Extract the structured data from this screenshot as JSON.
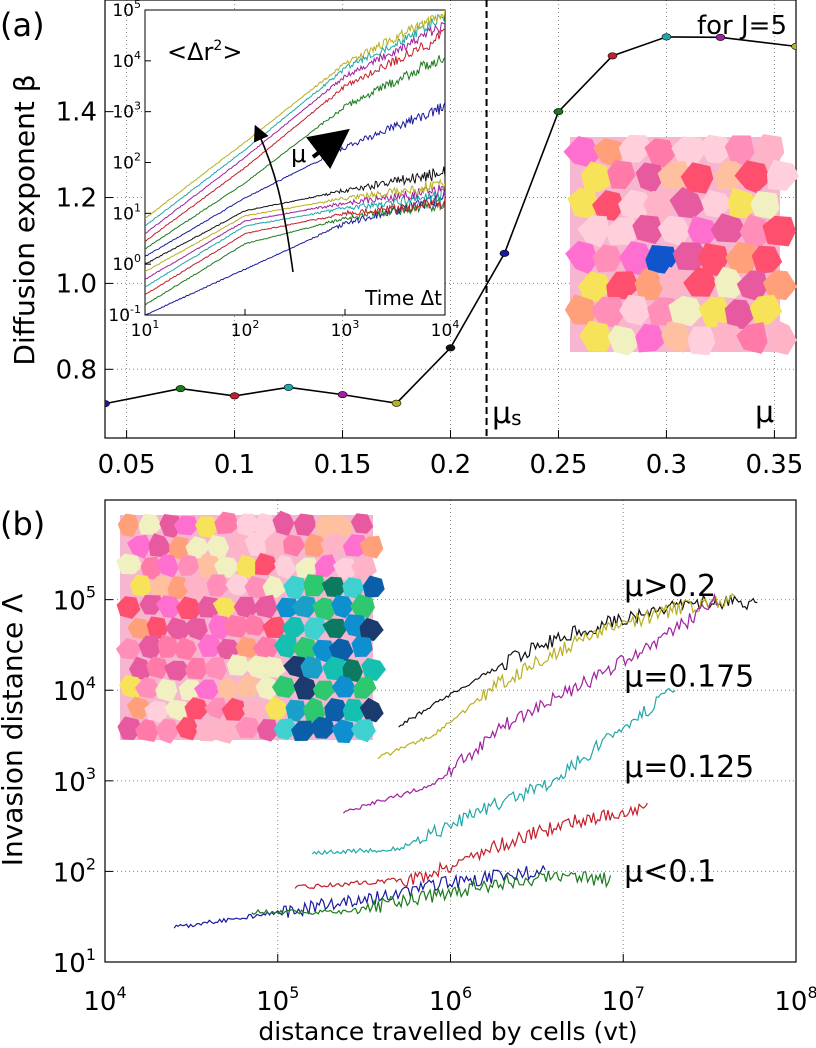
{
  "figure": {
    "panel_a_label": "(a)",
    "panel_b_label": "(b)"
  },
  "chart_data": [
    {
      "id": "a-main",
      "type": "line",
      "ylabel": "Diffusion exponent β",
      "xlabel": "",
      "annotation_j": "for J=5",
      "annotation_mu": "μ",
      "annotation_mus": "μ",
      "annotation_mus_sub": "s",
      "mu_s": 0.2167,
      "xlim": [
        0.04,
        0.36
      ],
      "ylim": [
        0.64,
        1.66
      ],
      "xticks": [
        0.05,
        0.1,
        0.15,
        0.2,
        0.25,
        0.3,
        0.35
      ],
      "xtick_labels": [
        "0.05",
        "0.1",
        "0.15",
        "0.2",
        "0.25",
        "0.3",
        "0.35"
      ],
      "yticks": [
        0.8,
        1.0,
        1.2,
        1.4
      ],
      "ytick_labels": [
        "0.8",
        "1.0",
        "1.2",
        "1.4"
      ],
      "grid": true,
      "points": [
        {
          "x": 0.04,
          "y": 0.72,
          "color": "#1a1aa0"
        },
        {
          "x": 0.075,
          "y": 0.755,
          "color": "#1c7a1c"
        },
        {
          "x": 0.1,
          "y": 0.738,
          "color": "#c41e2a"
        },
        {
          "x": 0.125,
          "y": 0.758,
          "color": "#20a8a8"
        },
        {
          "x": 0.15,
          "y": 0.741,
          "color": "#a020a0"
        },
        {
          "x": 0.175,
          "y": 0.721,
          "color": "#b8b020"
        },
        {
          "x": 0.2,
          "y": 0.85,
          "color": "#111111"
        },
        {
          "x": 0.225,
          "y": 1.07,
          "color": "#1a1aa0"
        },
        {
          "x": 0.25,
          "y": 1.4,
          "color": "#1c7a1c"
        },
        {
          "x": 0.275,
          "y": 1.53,
          "color": "#c41e2a"
        },
        {
          "x": 0.3,
          "y": 1.574,
          "color": "#20a8a8"
        },
        {
          "x": 0.325,
          "y": 1.573,
          "color": "#a020a0"
        },
        {
          "x": 0.36,
          "y": 1.552,
          "color": "#b8b020"
        }
      ]
    },
    {
      "id": "a-inset",
      "type": "line",
      "title": "<Δr",
      "title_sup": "2",
      "title_end": ">",
      "xlabel": "Time Δt",
      "arrow_label": "μ",
      "xscale": "log",
      "yscale": "log",
      "xlim": [
        1,
        4
      ],
      "ylim": [
        -1,
        5
      ],
      "xtick_labels": [
        {
          "b": "10",
          "e": "1"
        },
        {
          "b": "10",
          "e": "2"
        },
        {
          "b": "10",
          "e": "3"
        },
        {
          "b": "10",
          "e": "4"
        }
      ],
      "ytick_labels": [
        {
          "b": "10",
          "e": "-1"
        },
        {
          "b": "10",
          "e": "0"
        },
        {
          "b": "10",
          "e": "1"
        },
        {
          "b": "10",
          "e": "2"
        },
        {
          "b": "10",
          "e": "3"
        },
        {
          "b": "10",
          "e": "4"
        },
        {
          "b": "10",
          "e": "5"
        }
      ],
      "note": "axes in log10 units",
      "series": [
        {
          "color": "#1a1aa0",
          "curve": [
            [
              1,
              -1.0
            ],
            [
              2,
              -0.1
            ],
            [
              3,
              0.8
            ],
            [
              4,
              1.3
            ]
          ]
        },
        {
          "color": "#1c7a1c",
          "curve": [
            [
              1,
              -0.8
            ],
            [
              2,
              0.4
            ],
            [
              3,
              0.9
            ],
            [
              4,
              1.2
            ]
          ]
        },
        {
          "color": "#c41e2a",
          "curve": [
            [
              1,
              -0.6
            ],
            [
              2,
              0.6
            ],
            [
              3,
              1.0
            ],
            [
              4,
              1.2
            ]
          ]
        },
        {
          "color": "#20a8a8",
          "curve": [
            [
              1,
              -0.45
            ],
            [
              2,
              0.75
            ],
            [
              3,
              1.1
            ],
            [
              4,
              1.35
            ]
          ]
        },
        {
          "color": "#a020a0",
          "curve": [
            [
              1,
              -0.3
            ],
            [
              2,
              0.85
            ],
            [
              3,
              1.2
            ],
            [
              4,
              1.45
            ]
          ]
        },
        {
          "color": "#b8b020",
          "curve": [
            [
              1,
              -0.15
            ],
            [
              2,
              0.95
            ],
            [
              3,
              1.3
            ],
            [
              4,
              1.55
            ]
          ]
        },
        {
          "color": "#111111",
          "curve": [
            [
              1,
              0.0
            ],
            [
              2,
              1.05
            ],
            [
              3,
              1.45
            ],
            [
              4,
              1.8
            ]
          ]
        },
        {
          "color": "#1a1aa0",
          "curve": [
            [
              1,
              0.15
            ],
            [
              2,
              1.3
            ],
            [
              3,
              2.3
            ],
            [
              4,
              3.1
            ]
          ]
        },
        {
          "color": "#1c7a1c",
          "curve": [
            [
              1,
              0.3
            ],
            [
              2,
              1.6
            ],
            [
              3,
              3.1
            ],
            [
              4,
              4.1
            ]
          ]
        },
        {
          "color": "#c41e2a",
          "curve": [
            [
              1,
              0.45
            ],
            [
              2,
              1.9
            ],
            [
              3,
              3.5
            ],
            [
              4,
              4.5
            ]
          ]
        },
        {
          "color": "#a020a0",
          "curve": [
            [
              1,
              0.6
            ],
            [
              2,
              2.1
            ],
            [
              3,
              3.7
            ],
            [
              4,
              4.7
            ]
          ]
        },
        {
          "color": "#20a8a8",
          "curve": [
            [
              1,
              0.75
            ],
            [
              2,
              2.25
            ],
            [
              3,
              3.85
            ],
            [
              4,
              4.85
            ]
          ]
        },
        {
          "color": "#b8b020",
          "curve": [
            [
              1,
              0.9
            ],
            [
              2,
              2.4
            ],
            [
              3,
              3.95
            ],
            [
              4,
              4.95
            ]
          ]
        }
      ]
    },
    {
      "id": "b-main",
      "type": "line",
      "xlabel": "distance travelled by cells (vt)",
      "ylabel": "Invasion distance Λ",
      "xscale": "log",
      "yscale": "log",
      "xlim": [
        4,
        8
      ],
      "ylim": [
        1,
        6
      ],
      "grid": true,
      "xtick_labels": [
        {
          "b": "10",
          "e": "4"
        },
        {
          "b": "10",
          "e": "5"
        },
        {
          "b": "10",
          "e": "6"
        },
        {
          "b": "10",
          "e": "7"
        },
        {
          "b": "10",
          "e": "8"
        }
      ],
      "ytick_labels": [
        {
          "b": "10",
          "e": "1"
        },
        {
          "b": "10",
          "e": "2"
        },
        {
          "b": "10",
          "e": "3"
        },
        {
          "b": "10",
          "e": "4"
        },
        {
          "b": "10",
          "e": "5"
        }
      ],
      "note": "axes in log10 units",
      "labels": [
        {
          "text": "μ>0.2",
          "x": 7.15,
          "y": 5.15
        },
        {
          "text": "μ=0.175",
          "x": 7.15,
          "y": 4.15
        },
        {
          "text": "μ=0.125",
          "x": 7.15,
          "y": 3.15
        },
        {
          "text": "μ<0.1",
          "x": 7.15,
          "y": 2.0
        }
      ],
      "series": [
        {
          "color": "#111111",
          "curve": [
            [
              5.7,
              3.6
            ],
            [
              6.0,
              3.95
            ],
            [
              6.5,
              4.5
            ],
            [
              7.0,
              4.8
            ],
            [
              7.5,
              4.98
            ],
            [
              7.78,
              4.97
            ]
          ]
        },
        {
          "color": "#b8b020",
          "curve": [
            [
              5.58,
              3.25
            ],
            [
              5.9,
              3.5
            ],
            [
              6.3,
              4.1
            ],
            [
              6.8,
              4.6
            ],
            [
              7.3,
              4.9
            ],
            [
              7.65,
              5.02
            ]
          ]
        },
        {
          "color": "#a020a0",
          "curve": [
            [
              5.38,
              2.65
            ],
            [
              5.9,
              2.95
            ],
            [
              6.3,
              3.6
            ],
            [
              6.8,
              4.1
            ],
            [
              7.25,
              4.6
            ],
            [
              7.55,
              5.0
            ]
          ]
        },
        {
          "color": "#20a8a8",
          "curve": [
            [
              5.2,
              2.2
            ],
            [
              5.7,
              2.25
            ],
            [
              6.1,
              2.6
            ],
            [
              6.6,
              3.0
            ],
            [
              7.0,
              3.6
            ],
            [
              7.3,
              4.0
            ]
          ]
        },
        {
          "color": "#c41e2a",
          "curve": [
            [
              5.1,
              1.82
            ],
            [
              5.8,
              1.92
            ],
            [
              6.3,
              2.3
            ],
            [
              6.7,
              2.55
            ],
            [
              7.0,
              2.65
            ],
            [
              7.15,
              2.7
            ]
          ]
        },
        {
          "color": "#1a1aa0",
          "curve": [
            [
              4.4,
              1.38
            ],
            [
              5.0,
              1.55
            ],
            [
              5.6,
              1.72
            ],
            [
              6.0,
              1.88
            ],
            [
              6.3,
              1.95
            ],
            [
              6.55,
              2.02
            ]
          ]
        },
        {
          "color": "#1c7a1c",
          "curve": [
            [
              4.85,
              1.55
            ],
            [
              5.4,
              1.55
            ],
            [
              5.8,
              1.7
            ],
            [
              6.3,
              1.88
            ],
            [
              6.7,
              1.95
            ],
            [
              6.93,
              1.9
            ]
          ]
        }
      ]
    }
  ]
}
